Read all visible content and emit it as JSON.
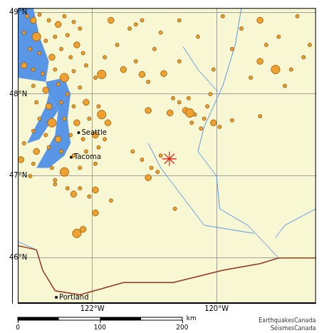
{
  "chart_data": {
    "type": "bubble",
    "marker": "circle",
    "color": "#f0a030",
    "xlim": [
      -123.2,
      -118.4
    ],
    "ylim": [
      45.45,
      49.05
    ],
    "xticks": [
      {
        "value": -122,
        "label": "122°W"
      },
      {
        "value": -120,
        "label": "120°W"
      }
    ],
    "yticks": [
      {
        "value": 46,
        "label": "46°N"
      },
      {
        "value": 47,
        "label": "47°N"
      },
      {
        "value": 48,
        "label": "48°N"
      },
      {
        "value": 49,
        "label": "49°N"
      }
    ],
    "grid": true,
    "points": [
      [
        -123.05,
        48.95,
        1
      ],
      [
        -122.95,
        48.9,
        2
      ],
      [
        -122.85,
        48.97,
        1
      ],
      [
        -122.7,
        48.9,
        1
      ],
      [
        -122.55,
        48.85,
        2
      ],
      [
        -122.45,
        48.95,
        1
      ],
      [
        -122.3,
        48.88,
        1
      ],
      [
        -122.2,
        48.8,
        1
      ],
      [
        -123.1,
        48.75,
        1
      ],
      [
        -122.9,
        48.7,
        3
      ],
      [
        -122.75,
        48.65,
        1
      ],
      [
        -122.6,
        48.7,
        1
      ],
      [
        -122.4,
        48.72,
        1
      ],
      [
        -122.25,
        48.6,
        2
      ],
      [
        -123.0,
        48.55,
        1
      ],
      [
        -122.85,
        48.5,
        1
      ],
      [
        -122.65,
        48.45,
        2
      ],
      [
        -122.5,
        48.55,
        1
      ],
      [
        -122.35,
        48.45,
        1
      ],
      [
        -122.15,
        48.5,
        1
      ],
      [
        -123.1,
        48.35,
        2
      ],
      [
        -122.95,
        48.3,
        1
      ],
      [
        -122.8,
        48.25,
        1
      ],
      [
        -122.6,
        48.3,
        1
      ],
      [
        -122.45,
        48.2,
        3
      ],
      [
        -122.3,
        48.28,
        1
      ],
      [
        -122.1,
        48.35,
        1
      ],
      [
        -122.95,
        48.1,
        1
      ],
      [
        -122.75,
        48.05,
        2
      ],
      [
        -122.55,
        48.12,
        1
      ],
      [
        -122.4,
        48.0,
        1
      ],
      [
        -122.2,
        48.08,
        1
      ],
      [
        -121.95,
        48.2,
        1
      ],
      [
        -121.8,
        48.45,
        1
      ],
      [
        -121.6,
        48.6,
        1
      ],
      [
        -121.4,
        48.8,
        1
      ],
      [
        -121.2,
        48.9,
        1
      ],
      [
        -121.7,
        48.9,
        2
      ],
      [
        -121.5,
        48.3,
        2
      ],
      [
        -121.3,
        48.4,
        1
      ],
      [
        -121.1,
        48.15,
        1
      ],
      [
        -121.0,
        48.55,
        1
      ],
      [
        -121.85,
        48.24,
        3
      ],
      [
        -121.2,
        48.24,
        2
      ],
      [
        -122.9,
        47.9,
        1
      ],
      [
        -122.7,
        47.85,
        2
      ],
      [
        -122.5,
        47.9,
        1
      ],
      [
        -122.3,
        47.85,
        1
      ],
      [
        -122.1,
        47.9,
        2
      ],
      [
        -121.9,
        47.85,
        1
      ],
      [
        -122.85,
        47.7,
        1
      ],
      [
        -122.65,
        47.65,
        3
      ],
      [
        -122.45,
        47.7,
        1
      ],
      [
        -122.25,
        47.65,
        2
      ],
      [
        -122.05,
        47.7,
        1
      ],
      [
        -121.85,
        47.75,
        3
      ],
      [
        -121.75,
        47.65,
        2
      ],
      [
        -122.95,
        47.55,
        1
      ],
      [
        -122.75,
        47.5,
        1
      ],
      [
        -122.55,
        47.45,
        2
      ],
      [
        -122.35,
        47.5,
        1
      ],
      [
        -122.15,
        47.45,
        1
      ],
      [
        -121.95,
        47.5,
        2
      ],
      [
        -121.8,
        47.45,
        1
      ],
      [
        -123.1,
        47.4,
        1
      ],
      [
        -122.9,
        47.3,
        2
      ],
      [
        -122.7,
        47.35,
        1
      ],
      [
        -122.5,
        47.3,
        1
      ],
      [
        -122.3,
        47.25,
        1
      ],
      [
        -122.1,
        47.3,
        1
      ],
      [
        -121.9,
        47.35,
        1
      ],
      [
        -123.15,
        47.2,
        2
      ],
      [
        -122.95,
        47.15,
        1
      ],
      [
        -122.65,
        47.1,
        1
      ],
      [
        -122.45,
        47.05,
        3
      ],
      [
        -122.2,
        47.1,
        1
      ],
      [
        -121.95,
        47.15,
        1
      ],
      [
        -123.0,
        47.0,
        1
      ],
      [
        -122.6,
        46.95,
        1
      ],
      [
        -122.4,
        46.85,
        1
      ],
      [
        -122.3,
        46.78,
        2
      ],
      [
        -121.95,
        46.83,
        2
      ],
      [
        -122.25,
        46.3,
        3
      ],
      [
        -122.15,
        46.35,
        2
      ],
      [
        -121.95,
        46.55,
        2
      ],
      [
        -122.05,
        46.75,
        1
      ],
      [
        -122.2,
        46.85,
        1
      ],
      [
        -121.7,
        46.7,
        1
      ],
      [
        -122.6,
        46.9,
        1
      ],
      [
        -120.67,
        46.6,
        1
      ],
      [
        -121.2,
        47.2,
        1
      ],
      [
        -121.05,
        47.1,
        1
      ],
      [
        -120.95,
        47.05,
        1
      ],
      [
        -121.1,
        46.98,
        2
      ],
      [
        -120.9,
        47.25,
        1
      ],
      [
        -121.35,
        47.3,
        1
      ],
      [
        -120.6,
        47.9,
        1
      ],
      [
        -120.5,
        47.8,
        2
      ],
      [
        -120.35,
        47.75,
        1
      ],
      [
        -120.2,
        47.7,
        1
      ],
      [
        -120.05,
        47.65,
        2
      ],
      [
        -119.95,
        47.6,
        1
      ],
      [
        -120.25,
        47.58,
        1
      ],
      [
        -120.7,
        47.95,
        1
      ],
      [
        -120.45,
        47.95,
        1
      ],
      [
        -120.15,
        47.85,
        1
      ],
      [
        -120.4,
        47.65,
        1
      ],
      [
        -120.1,
        48.0,
        1
      ],
      [
        -120.43,
        47.77,
        3
      ],
      [
        -120.75,
        47.77,
        2
      ],
      [
        -121.1,
        47.8,
        2
      ],
      [
        -119.3,
        47.73,
        1
      ],
      [
        -119.75,
        47.68,
        1
      ],
      [
        -121.3,
        48.85,
        1
      ],
      [
        -120.9,
        48.75,
        1
      ],
      [
        -120.6,
        48.9,
        1
      ],
      [
        -120.3,
        48.7,
        1
      ],
      [
        -119.9,
        48.95,
        1
      ],
      [
        -119.6,
        48.8,
        1
      ],
      [
        -119.3,
        48.9,
        2
      ],
      [
        -119.0,
        48.7,
        1
      ],
      [
        -118.7,
        48.95,
        1
      ],
      [
        -118.5,
        48.6,
        1
      ],
      [
        -119.75,
        48.55,
        1
      ],
      [
        -119.3,
        48.4,
        2
      ],
      [
        -119.05,
        48.3,
        3
      ],
      [
        -119.45,
        48.2,
        1
      ],
      [
        -118.9,
        48.1,
        1
      ],
      [
        -120.05,
        48.3,
        1
      ],
      [
        -120.6,
        48.4,
        1
      ],
      [
        -120.85,
        48.25,
        2
      ],
      [
        -118.6,
        48.45,
        1
      ],
      [
        -119.2,
        48.6,
        1
      ],
      [
        -118.8,
        48.3,
        1
      ]
    ],
    "event": {
      "x": -120.76,
      "y": 47.21,
      "marker": "star",
      "color": "#e0301e"
    },
    "cities": {
      "marker": "square",
      "color": "#000000",
      "points": [
        {
          "label": "Seattle",
          "x": -122.22,
          "y": 47.53
        },
        {
          "label": "Tacoma",
          "x": -122.34,
          "y": 47.23
        },
        {
          "label": "Portland",
          "x": -122.58,
          "y": 45.52
        }
      ]
    },
    "water": {
      "color": "#5a96e6",
      "polygons": [
        [
          [
            -123.2,
            48.2
          ],
          [
            -122.75,
            48.15
          ],
          [
            -122.7,
            48.4
          ],
          [
            -122.85,
            48.7
          ],
          [
            -122.95,
            49.05
          ],
          [
            -123.2,
            49.05
          ]
        ],
        [
          [
            -122.75,
            48.15
          ],
          [
            -122.45,
            48.2
          ],
          [
            -122.35,
            48.0
          ],
          [
            -122.4,
            47.7
          ],
          [
            -122.35,
            47.4
          ],
          [
            -122.45,
            47.25
          ],
          [
            -122.7,
            47.1
          ],
          [
            -122.9,
            47.1
          ],
          [
            -122.75,
            47.3
          ],
          [
            -122.6,
            47.5
          ],
          [
            -122.55,
            47.8
          ],
          [
            -122.7,
            48.0
          ]
        ],
        [
          [
            -122.7,
            48.0
          ],
          [
            -122.55,
            47.8
          ],
          [
            -122.85,
            47.45
          ],
          [
            -123.05,
            47.4
          ],
          [
            -122.95,
            47.55
          ],
          [
            -122.75,
            47.85
          ]
        ]
      ]
    },
    "rivers": {
      "color": "#5a96e6",
      "lines": [
        [
          [
            -119.6,
            49.05
          ],
          [
            -119.7,
            48.6
          ],
          [
            -119.9,
            48.1
          ],
          [
            -120.2,
            47.6
          ],
          [
            -120.3,
            47.3
          ],
          [
            -120.0,
            47.0
          ],
          [
            -119.95,
            46.6
          ],
          [
            -119.5,
            46.4
          ],
          [
            -119.25,
            46.2
          ],
          [
            -119.0,
            46.0
          ],
          [
            -119.3,
            45.93
          ],
          [
            -119.9,
            45.85
          ],
          [
            -120.7,
            45.7
          ],
          [
            -121.5,
            45.7
          ],
          [
            -122.2,
            45.55
          ],
          [
            -122.6,
            45.6
          ],
          [
            -122.8,
            45.85
          ],
          [
            -122.9,
            46.1
          ],
          [
            -123.2,
            46.2
          ]
        ],
        [
          [
            -120.54,
            48.58
          ],
          [
            -120.3,
            48.3
          ],
          [
            -119.98,
            48.03
          ]
        ],
        [
          [
            -121.1,
            47.4
          ],
          [
            -120.9,
            47.1
          ],
          [
            -120.5,
            46.7
          ],
          [
            -120.2,
            46.4
          ],
          [
            -119.4,
            46.3
          ]
        ],
        [
          [
            -118.4,
            46.6
          ],
          [
            -118.9,
            46.4
          ],
          [
            -119.05,
            46.25
          ]
        ]
      ]
    },
    "border": {
      "color": "#9b3b1b",
      "line": [
        [
          -123.2,
          46.15
        ],
        [
          -122.9,
          46.1
        ],
        [
          -122.8,
          45.85
        ],
        [
          -122.6,
          45.6
        ],
        [
          -122.2,
          45.55
        ],
        [
          -121.5,
          45.7
        ],
        [
          -120.7,
          45.7
        ],
        [
          -119.9,
          45.85
        ],
        [
          -119.3,
          45.93
        ],
        [
          -119.0,
          46.0
        ],
        [
          -118.4,
          46.0
        ]
      ]
    },
    "scale_bar": {
      "ticks": [
        0,
        100,
        200
      ],
      "unit": "km"
    },
    "credits": [
      "EarthquakesCanada",
      "SéismesCanada"
    ]
  }
}
